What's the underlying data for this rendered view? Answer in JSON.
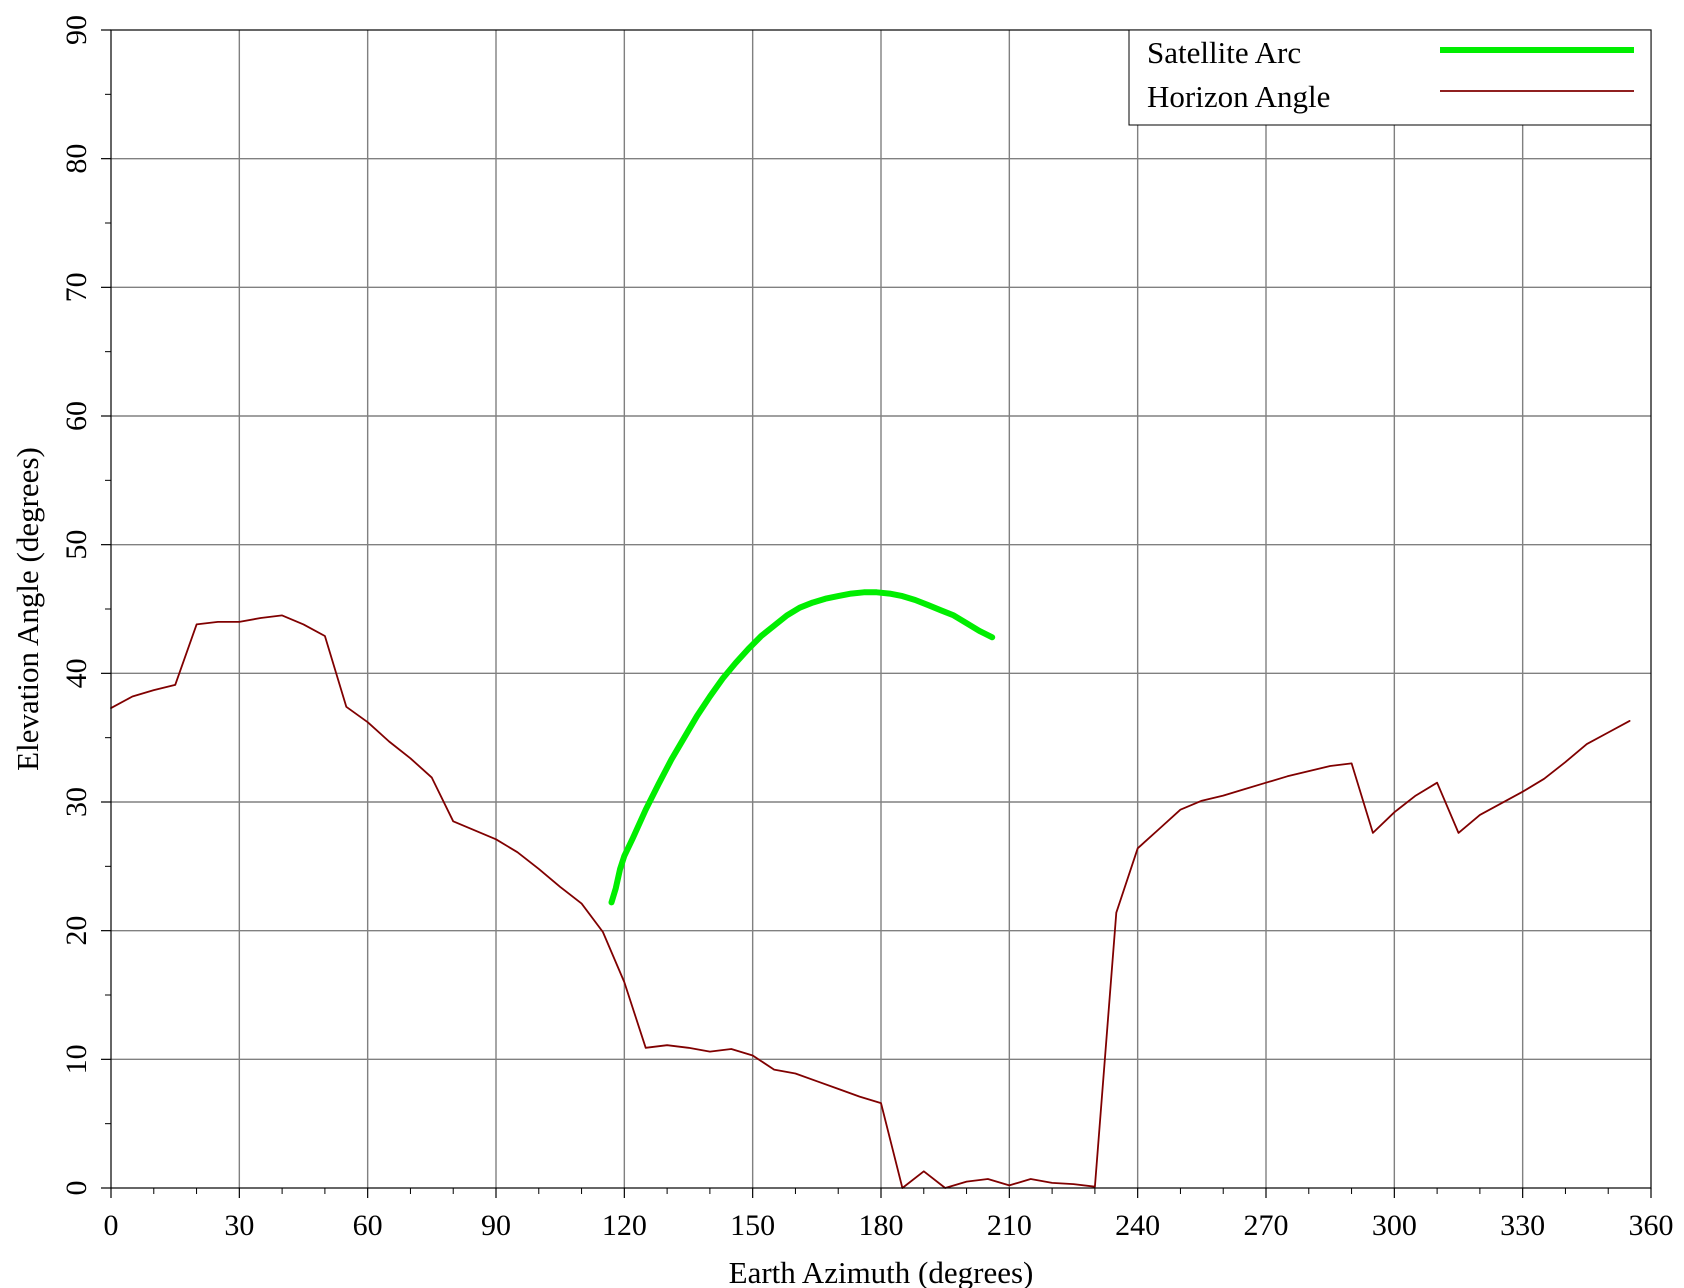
{
  "chart_data": {
    "type": "line",
    "xlabel": "Earth Azimuth (degrees)",
    "ylabel": "Elevation Angle (degrees)",
    "xlim": [
      0,
      360
    ],
    "ylim": [
      0,
      90
    ],
    "x_ticks": [
      0,
      30,
      60,
      90,
      120,
      150,
      180,
      210,
      240,
      270,
      300,
      330,
      360
    ],
    "y_ticks": [
      0,
      10,
      20,
      30,
      40,
      50,
      60,
      70,
      80,
      90
    ],
    "x_tick_labels": [
      "0",
      "30",
      "60",
      "90",
      "120",
      "150",
      "180",
      "210",
      "240",
      "270",
      "300",
      "330",
      "360"
    ],
    "y_tick_labels": [
      "0",
      "10",
      "20",
      "30",
      "40",
      "50",
      "60",
      "70",
      "80",
      "90"
    ],
    "x_minor_step": 10,
    "y_minor_step": 5,
    "grid": true,
    "legend_position": "top-right",
    "series": [
      {
        "name": "Satellite Arc",
        "color": "#00ee00",
        "x": [
          117,
          118,
          119,
          120,
          122,
          125,
          128,
          131,
          134,
          137,
          140,
          143,
          146,
          149,
          152,
          155,
          158,
          161,
          164,
          167,
          170,
          173,
          176,
          179,
          182,
          185,
          188,
          191,
          194,
          197,
          200,
          203,
          206
        ],
        "y": [
          22.2,
          23.3,
          24.8,
          25.8,
          27.2,
          29.4,
          31.4,
          33.3,
          35.0,
          36.7,
          38.2,
          39.6,
          40.8,
          41.9,
          42.9,
          43.7,
          44.5,
          45.1,
          45.5,
          45.8,
          46.0,
          46.2,
          46.3,
          46.3,
          46.2,
          46.0,
          45.7,
          45.3,
          44.9,
          44.5,
          43.9,
          43.3,
          42.8
        ]
      },
      {
        "name": "Horizon Angle",
        "color": "#800000",
        "x": [
          0,
          5,
          10,
          15,
          20,
          25,
          30,
          35,
          40,
          45,
          50,
          55,
          60,
          65,
          70,
          75,
          80,
          85,
          90,
          95,
          100,
          105,
          110,
          115,
          120,
          125,
          130,
          135,
          140,
          145,
          150,
          155,
          160,
          165,
          170,
          175,
          180,
          185,
          190,
          195,
          200,
          205,
          210,
          215,
          220,
          225,
          230,
          235,
          240,
          245,
          250,
          255,
          260,
          265,
          270,
          275,
          280,
          285,
          290,
          295,
          300,
          305,
          310,
          315,
          320,
          325,
          330,
          335,
          340,
          345,
          350,
          355
        ],
        "y": [
          37.3,
          38.2,
          38.7,
          39.1,
          43.8,
          44.0,
          44.0,
          44.3,
          44.5,
          43.8,
          42.9,
          37.4,
          36.2,
          34.7,
          33.4,
          31.9,
          28.5,
          27.8,
          27.1,
          26.1,
          24.8,
          23.4,
          22.1,
          19.9,
          16.0,
          10.9,
          11.1,
          10.9,
          10.6,
          10.8,
          10.3,
          9.2,
          8.9,
          8.3,
          7.7,
          7.1,
          6.6,
          0.0,
          1.3,
          0.0,
          0.5,
          0.7,
          0.2,
          0.7,
          0.4,
          0.3,
          0.1,
          21.4,
          26.4,
          27.9,
          29.4,
          30.1,
          30.5,
          31.0,
          31.5,
          32.0,
          32.4,
          32.8,
          33.0,
          27.6,
          29.2,
          30.5,
          31.5,
          27.6,
          29.0,
          29.9,
          30.8,
          31.8,
          33.1,
          34.5,
          35.4,
          36.3
        ]
      }
    ]
  }
}
